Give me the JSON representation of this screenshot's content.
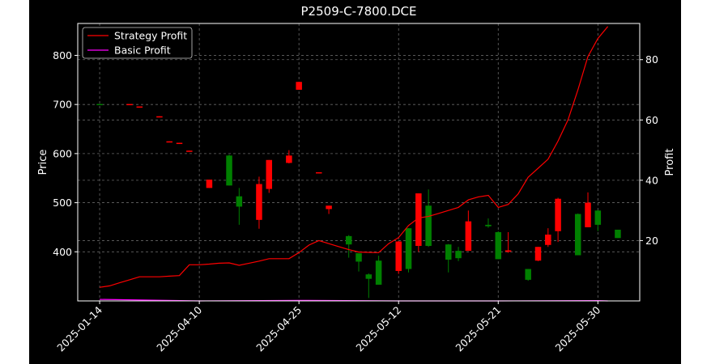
{
  "chart_data": {
    "type": "candlestick",
    "title": "P2509-C-7800.DCE",
    "ylabel_left": "Price",
    "ylabel_right": "Profit",
    "ylim_left": [
      300,
      865
    ],
    "ylim_right": [
      0,
      92
    ],
    "yticks_left": [
      400,
      500,
      600,
      700,
      800
    ],
    "yticks_right": [
      20,
      40,
      60,
      80
    ],
    "x_tick_labels": [
      {
        "index": 0,
        "label": "2025-01-14"
      },
      {
        "index": 10,
        "label": "2025-04-10"
      },
      {
        "index": 20,
        "label": "2025-04-25"
      },
      {
        "index": 30,
        "label": "2025-05-12"
      },
      {
        "index": 40,
        "label": "2025-05-21"
      },
      {
        "index": 50,
        "label": "2025-05-30"
      }
    ],
    "grid": true,
    "legend_position": "upper-left",
    "colors": {
      "background": "#000000",
      "up": "#008000",
      "down": "#ff0000",
      "strategy": "#ff0000",
      "basic": "#ff00ff",
      "grid": "#666666",
      "axis": "#ffffff"
    },
    "candles": [
      {
        "i": 0,
        "o": 701,
        "h": 701,
        "l": 701,
        "c": 701
      },
      {
        "i": 3,
        "o": 701,
        "h": 701,
        "l": 701,
        "c": 700
      },
      {
        "i": 4,
        "o": 696,
        "h": 696,
        "l": 696,
        "c": 695
      },
      {
        "i": 6,
        "o": 676,
        "h": 676,
        "l": 674,
        "c": 674
      },
      {
        "i": 7,
        "o": 625,
        "h": 625,
        "l": 624,
        "c": 624
      },
      {
        "i": 8,
        "o": 622,
        "h": 622,
        "l": 621,
        "c": 621
      },
      {
        "i": 9,
        "o": 606,
        "h": 606,
        "l": 604,
        "c": 604
      },
      {
        "i": 11,
        "o": 547,
        "h": 547,
        "l": 530,
        "c": 530
      },
      {
        "i": 13,
        "o": 535,
        "h": 598,
        "l": 535,
        "c": 596
      },
      {
        "i": 14,
        "o": 492,
        "h": 530,
        "l": 455,
        "c": 513
      },
      {
        "i": 16,
        "o": 538,
        "h": 553,
        "l": 447,
        "c": 465
      },
      {
        "i": 17,
        "o": 587,
        "h": 587,
        "l": 520,
        "c": 528
      },
      {
        "i": 19,
        "o": 596,
        "h": 607,
        "l": 580,
        "c": 581
      },
      {
        "i": 20,
        "o": 746,
        "h": 746,
        "l": 730,
        "c": 730
      },
      {
        "i": 22,
        "o": 562,
        "h": 562,
        "l": 561,
        "c": 561
      },
      {
        "i": 23,
        "o": 494,
        "h": 494,
        "l": 477,
        "c": 487
      },
      {
        "i": 25,
        "o": 415,
        "h": 434,
        "l": 388,
        "c": 432
      },
      {
        "i": 26,
        "o": 380,
        "h": 396,
        "l": 360,
        "c": 397
      },
      {
        "i": 27,
        "o": 345,
        "h": 356,
        "l": 306,
        "c": 354
      },
      {
        "i": 28,
        "o": 333,
        "h": 392,
        "l": 333,
        "c": 382
      },
      {
        "i": 30,
        "o": 421,
        "h": 422,
        "l": 355,
        "c": 361
      },
      {
        "i": 31,
        "o": 365,
        "h": 448,
        "l": 358,
        "c": 448
      },
      {
        "i": 32,
        "o": 519,
        "h": 519,
        "l": 400,
        "c": 412
      },
      {
        "i": 33,
        "o": 412,
        "h": 527,
        "l": 410,
        "c": 494
      },
      {
        "i": 35,
        "o": 384,
        "h": 416,
        "l": 358,
        "c": 415
      },
      {
        "i": 36,
        "o": 387,
        "h": 410,
        "l": 381,
        "c": 402
      },
      {
        "i": 37,
        "o": 462,
        "h": 484,
        "l": 402,
        "c": 402
      },
      {
        "i": 39,
        "o": 452,
        "h": 468,
        "l": 449,
        "c": 455
      },
      {
        "i": 40,
        "o": 385,
        "h": 442,
        "l": 385,
        "c": 440
      },
      {
        "i": 41,
        "o": 403,
        "h": 440,
        "l": 398,
        "c": 400
      },
      {
        "i": 43,
        "o": 343,
        "h": 365,
        "l": 341,
        "c": 365
      },
      {
        "i": 44,
        "o": 410,
        "h": 410,
        "l": 381,
        "c": 382
      },
      {
        "i": 45,
        "o": 435,
        "h": 448,
        "l": 410,
        "c": 414
      },
      {
        "i": 46,
        "o": 508,
        "h": 510,
        "l": 420,
        "c": 442
      },
      {
        "i": 48,
        "o": 393,
        "h": 478,
        "l": 393,
        "c": 477
      },
      {
        "i": 49,
        "o": 500,
        "h": 521,
        "l": 450,
        "c": 450
      },
      {
        "i": 50,
        "o": 455,
        "h": 485,
        "l": 442,
        "c": 484
      },
      {
        "i": 52,
        "o": 428,
        "h": 445,
        "l": 428,
        "c": 445
      }
    ],
    "series": [
      {
        "name": "Strategy Profit",
        "color": "#ff0000",
        "x": [
          0,
          1,
          2,
          3,
          4,
          5,
          6,
          7,
          8,
          9,
          10,
          11,
          12,
          13,
          14,
          15,
          16,
          17,
          18,
          19,
          20,
          21,
          22,
          23,
          24,
          25,
          26,
          27,
          28,
          29,
          30,
          31,
          32,
          33,
          34,
          35,
          36,
          37,
          38,
          39,
          40,
          41,
          42,
          43,
          44,
          45,
          46,
          47,
          48,
          49,
          50,
          51
        ],
        "values": [
          4.5,
          5,
          6,
          7,
          8,
          8,
          8,
          8.2,
          8.4,
          12,
          12,
          12.2,
          12.5,
          12.6,
          11.8,
          12.5,
          13.2,
          14,
          14,
          14,
          16,
          18.5,
          20,
          19,
          18,
          17,
          16.2,
          16.1,
          16,
          19,
          21,
          25,
          27.5,
          28,
          29,
          30,
          31,
          33.5,
          34.5,
          35,
          31,
          32,
          35.5,
          41,
          44,
          47,
          53,
          60,
          70,
          81,
          87,
          91
        ]
      },
      {
        "name": "Basic Profit",
        "color": "#ff00ff",
        "x": [
          0,
          10,
          20,
          30,
          40,
          50,
          51
        ],
        "values": [
          0.5,
          0,
          0.2,
          0,
          0,
          0.1,
          0
        ]
      }
    ]
  }
}
